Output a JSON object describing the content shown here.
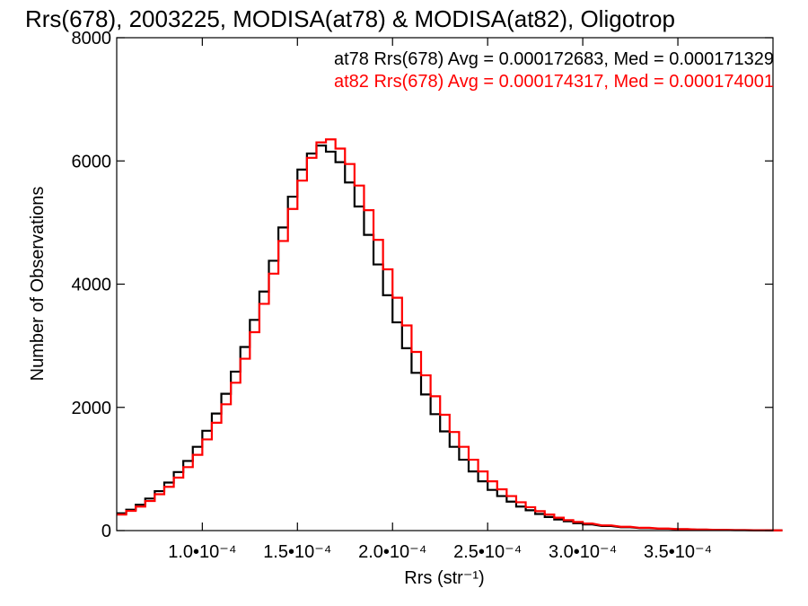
{
  "chart_data": {
    "type": "histogram",
    "title": "Rrs(678), 2003225, MODISA(at78) & MODISA(at82), Oligotrop",
    "xlabel": "Rrs (str⁻¹)",
    "ylabel": "Number of Observations",
    "xlim": [
      5.5e-05,
      0.0004
    ],
    "ylim": [
      0,
      8000
    ],
    "x_ticks": [
      {
        "value": 0.0001,
        "label": "1.0•10⁻⁴"
      },
      {
        "value": 0.00015,
        "label": "1.5•10⁻⁴"
      },
      {
        "value": 0.0002,
        "label": "2.0•10⁻⁴"
      },
      {
        "value": 0.00025,
        "label": "2.5•10⁻⁴"
      },
      {
        "value": 0.0003,
        "label": "3.0•10⁻⁴"
      },
      {
        "value": 0.00035,
        "label": "3.5•10⁻⁴"
      }
    ],
    "y_ticks": [
      {
        "value": 0,
        "label": "0"
      },
      {
        "value": 2000,
        "label": "2000"
      },
      {
        "value": 4000,
        "label": "4000"
      },
      {
        "value": 6000,
        "label": "6000"
      },
      {
        "value": 8000,
        "label": "8000"
      }
    ],
    "annotations": [
      {
        "text": "at78 Rrs(678) Avg = 0.000172683, Med = 0.000171329",
        "color": "#000000"
      },
      {
        "text": "at82 Rrs(678) Avg = 0.000174317, Med = 0.000174001",
        "color": "#ff0000"
      }
    ],
    "series": [
      {
        "color": "#000000",
        "x": [
          5.5e-05,
          6e-05,
          6.5e-05,
          7e-05,
          7.5e-05,
          8e-05,
          8.5e-05,
          9e-05,
          9.5e-05,
          0.0001,
          0.000105,
          0.00011,
          0.000115,
          0.00012,
          0.000125,
          0.00013,
          0.000135,
          0.00014,
          0.000145,
          0.00015,
          0.000155,
          0.00016,
          0.000165,
          0.00017,
          0.000175,
          0.00018,
          0.000185,
          0.00019,
          0.000195,
          0.0002,
          0.000205,
          0.00021,
          0.000215,
          0.00022,
          0.000225,
          0.00023,
          0.000235,
          0.00024,
          0.000245,
          0.00025,
          0.000255,
          0.00026,
          0.000265,
          0.00027,
          0.000275,
          0.00028,
          0.000285,
          0.00029,
          0.000295,
          0.0003,
          0.00031,
          0.00032,
          0.00033,
          0.00034,
          0.00035,
          0.00036,
          0.00037,
          0.00038,
          0.00039,
          0.0004
        ],
        "y": [
          280,
          340,
          420,
          520,
          640,
          780,
          950,
          1130,
          1360,
          1620,
          1900,
          2220,
          2580,
          2980,
          3420,
          3880,
          4380,
          4920,
          5420,
          5860,
          6120,
          6250,
          6150,
          5980,
          5650,
          5260,
          4800,
          4320,
          3820,
          3380,
          2960,
          2560,
          2210,
          1890,
          1610,
          1360,
          1150,
          960,
          800,
          660,
          560,
          470,
          390,
          330,
          270,
          220,
          180,
          150,
          120,
          100,
          75,
          55,
          40,
          30,
          22,
          15,
          10,
          7,
          5,
          4
        ]
      },
      {
        "color": "#ff0000",
        "x": [
          5.5e-05,
          6e-05,
          6.5e-05,
          7e-05,
          7.5e-05,
          8e-05,
          8.5e-05,
          9e-05,
          9.5e-05,
          0.0001,
          0.000105,
          0.00011,
          0.000115,
          0.00012,
          0.000125,
          0.00013,
          0.000135,
          0.00014,
          0.000145,
          0.00015,
          0.000155,
          0.00016,
          0.000165,
          0.00017,
          0.000175,
          0.00018,
          0.000185,
          0.00019,
          0.000195,
          0.0002,
          0.000205,
          0.00021,
          0.000215,
          0.00022,
          0.000225,
          0.00023,
          0.000235,
          0.00024,
          0.000245,
          0.00025,
          0.000255,
          0.00026,
          0.000265,
          0.00027,
          0.000275,
          0.00028,
          0.000285,
          0.00029,
          0.000295,
          0.0003,
          0.00031,
          0.00032,
          0.00033,
          0.00034,
          0.00035,
          0.00036,
          0.00037,
          0.00038,
          0.00039,
          0.0004
        ],
        "y": [
          260,
          320,
          390,
          480,
          590,
          710,
          860,
          1030,
          1230,
          1480,
          1750,
          2050,
          2400,
          2790,
          3220,
          3680,
          4170,
          4700,
          5220,
          5680,
          6050,
          6300,
          6350,
          6200,
          5950,
          5600,
          5200,
          4720,
          4240,
          3780,
          3330,
          2900,
          2520,
          2180,
          1880,
          1600,
          1360,
          1150,
          960,
          800,
          670,
          560,
          460,
          380,
          315,
          260,
          210,
          170,
          140,
          115,
          85,
          62,
          45,
          33,
          24,
          16,
          11,
          8,
          5,
          4
        ]
      }
    ]
  }
}
